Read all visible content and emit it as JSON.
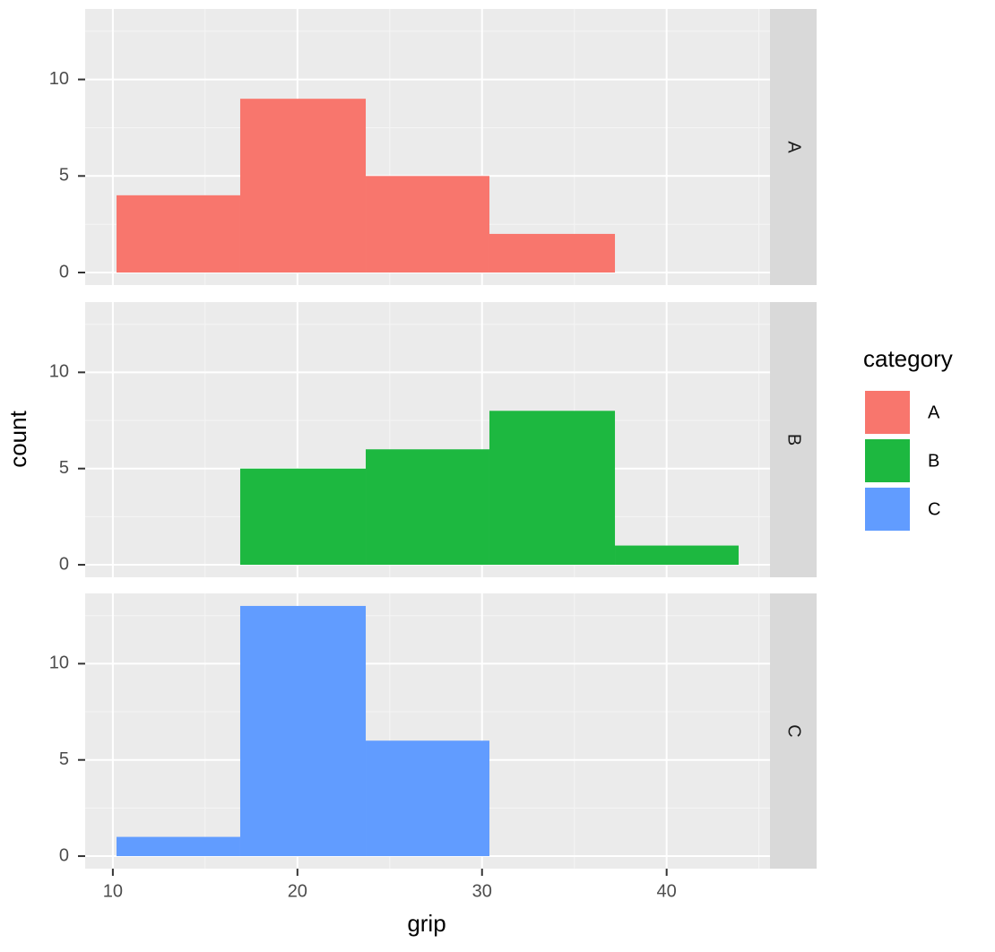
{
  "chart_data": {
    "type": "histogram",
    "xlabel": "grip",
    "ylabel": "count",
    "legend_title": "category",
    "bins": [
      10.2,
      16.9,
      23.7,
      30.4,
      37.2,
      43.9
    ],
    "series": [
      {
        "name": "A",
        "color": "#f8766d",
        "values": [
          4,
          9,
          5,
          2,
          0
        ]
      },
      {
        "name": "B",
        "color": "#1db840",
        "values": [
          0,
          5,
          6,
          8,
          1
        ]
      },
      {
        "name": "C",
        "color": "#619cff",
        "values": [
          1,
          13,
          6,
          0,
          0
        ]
      }
    ],
    "xlim": [
      8.5,
      45.6
    ],
    "xticks": [
      10,
      20,
      30,
      40
    ],
    "x_minor_grid": [
      15,
      25,
      35,
      45
    ],
    "ylim": [
      -0.65,
      13.65
    ],
    "yticks": [
      0,
      5,
      10
    ],
    "y_minor_grid": [
      2.5,
      7.5,
      12.5
    ],
    "grid": true,
    "legend": "right"
  }
}
